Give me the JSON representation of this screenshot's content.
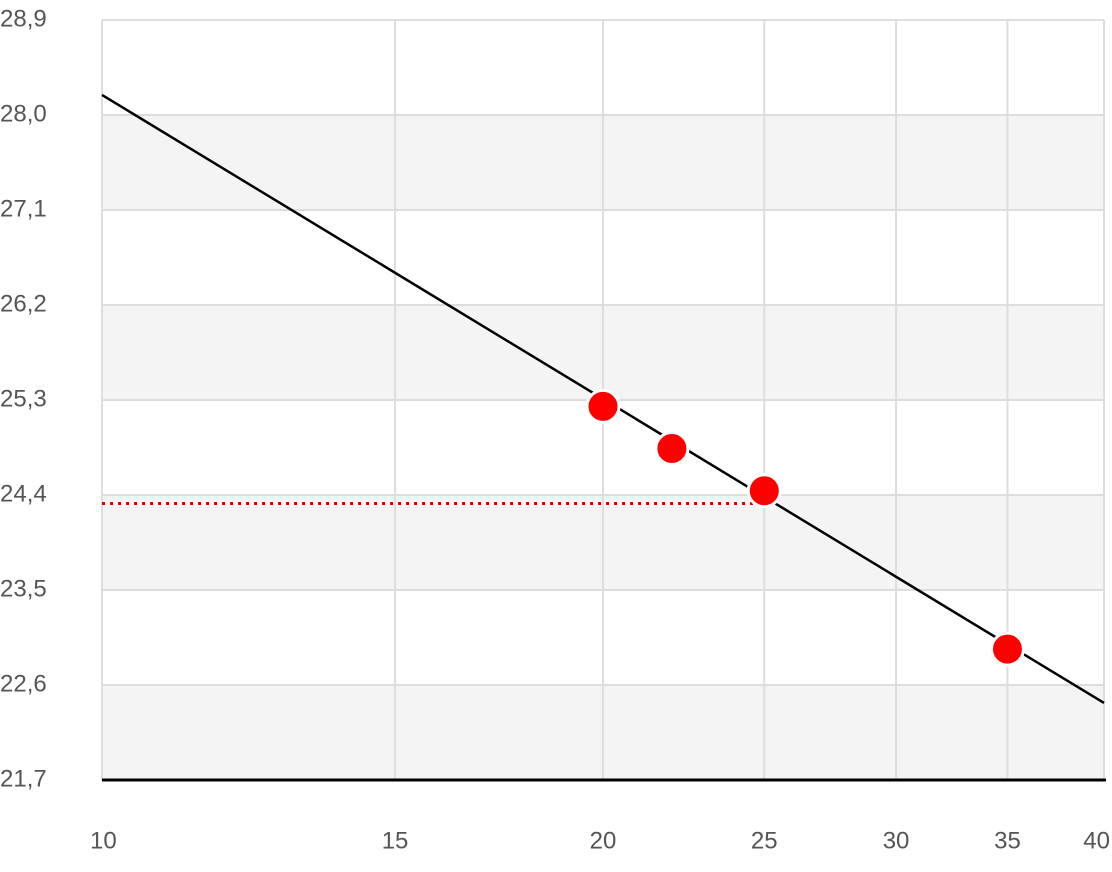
{
  "chart_data": {
    "type": "scatter",
    "x_log": true,
    "xlim": [
      10,
      40
    ],
    "xticks": [
      10,
      15,
      20,
      25,
      30,
      35,
      40
    ],
    "ylim": [
      21.7,
      28.9
    ],
    "yticks": [
      {
        "value": 21.7,
        "label": "21,7"
      },
      {
        "value": 22.6,
        "label": "22,6"
      },
      {
        "value": 23.5,
        "label": "23,5"
      },
      {
        "value": 24.4,
        "label": "24,4"
      },
      {
        "value": 25.3,
        "label": "25,3"
      },
      {
        "value": 26.2,
        "label": "26,2"
      },
      {
        "value": 27.1,
        "label": "27,1"
      },
      {
        "value": 28.0,
        "label": "28,0"
      },
      {
        "value": 28.9,
        "label": "28,9"
      }
    ],
    "grid": true,
    "alternate_bands": true,
    "series": [
      {
        "color": "#ff0000",
        "x": [
          20,
          22,
          25,
          35
        ],
        "values": [
          25.24,
          24.84,
          24.44,
          22.94
        ]
      }
    ],
    "fit_line": {
      "color": "#000000",
      "x": [
        10,
        40
      ],
      "values": [
        28.19,
        22.43
      ]
    },
    "reference_line": {
      "color": "#e00000",
      "y": 24.32,
      "x_end": 24.7
    }
  }
}
